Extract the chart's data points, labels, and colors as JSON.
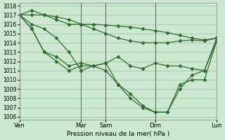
{
  "background_color": "#cce8d0",
  "grid_color": "#aacfb0",
  "line_color": "#2d6e2d",
  "marker_color": "#2d6e2d",
  "ylabel_min": 1006,
  "ylabel_max": 1018,
  "ytick_step": 1,
  "xlabel": "Pression niveau de la mer( hPa )",
  "x_ticks_labels": [
    "Ven",
    "Mar",
    "Sam",
    "Dim",
    "Lun"
  ],
  "x_ticks_pos": [
    0,
    5,
    7,
    11,
    16
  ],
  "line1": {
    "x": [
      0,
      1,
      2,
      3,
      4,
      5,
      6,
      7,
      8,
      9,
      10,
      11,
      12,
      13,
      14,
      15,
      16
    ],
    "y": [
      1017,
      1017,
      1017,
      1016.5,
      1016,
      1016,
      1016,
      1015.9,
      1015.8,
      1015.7,
      1015.5,
      1015.3,
      1015.1,
      1014.8,
      1014.5,
      1014.3,
      1014.5
    ]
  },
  "line2": {
    "x": [
      0,
      1,
      2,
      3,
      4,
      5,
      6,
      7,
      8,
      9,
      10,
      11,
      12,
      13,
      14,
      15,
      16
    ],
    "y": [
      1017,
      1017.5,
      1017,
      1016.8,
      1016.5,
      1016,
      1015.5,
      1015,
      1014.5,
      1014.2,
      1014.0,
      1014.0,
      1014.0,
      1014.2,
      1014.3,
      1014.2,
      1014.5
    ]
  },
  "line3": {
    "x": [
      0,
      1,
      2,
      3,
      4,
      5,
      6,
      7,
      8,
      9,
      10,
      11,
      12,
      13,
      14,
      15,
      16
    ],
    "y": [
      1017,
      1016,
      1015.5,
      1014.5,
      1013,
      1011,
      1011.5,
      1011.8,
      1012.5,
      1011.5,
      1011.2,
      1011.8,
      1011.5,
      1011.5,
      1011.2,
      1011.0,
      1014.2
    ]
  },
  "line4": {
    "x": [
      0,
      1,
      2,
      3,
      4,
      5,
      6,
      7,
      8,
      9,
      10,
      11,
      12,
      13,
      14,
      15,
      16
    ],
    "y": [
      1017,
      1015.5,
      1013,
      1012.5,
      1011.5,
      1011.8,
      1011.5,
      1011.8,
      1009.5,
      1008.5,
      1007.2,
      1006.5,
      1006.5,
      1009.5,
      1010,
      1010.0,
      1014.2
    ]
  },
  "line5": {
    "x": [
      0,
      1,
      2,
      3,
      4,
      5,
      6,
      7,
      8,
      9,
      10,
      11,
      12,
      13,
      14,
      15,
      16
    ],
    "y": [
      1017,
      1015.5,
      1013,
      1012,
      1011,
      1011.5,
      1011.5,
      1011.0,
      1009.5,
      1008.0,
      1007.0,
      1006.5,
      1006.5,
      1009.0,
      1010.5,
      1011.0,
      1014.5
    ]
  }
}
